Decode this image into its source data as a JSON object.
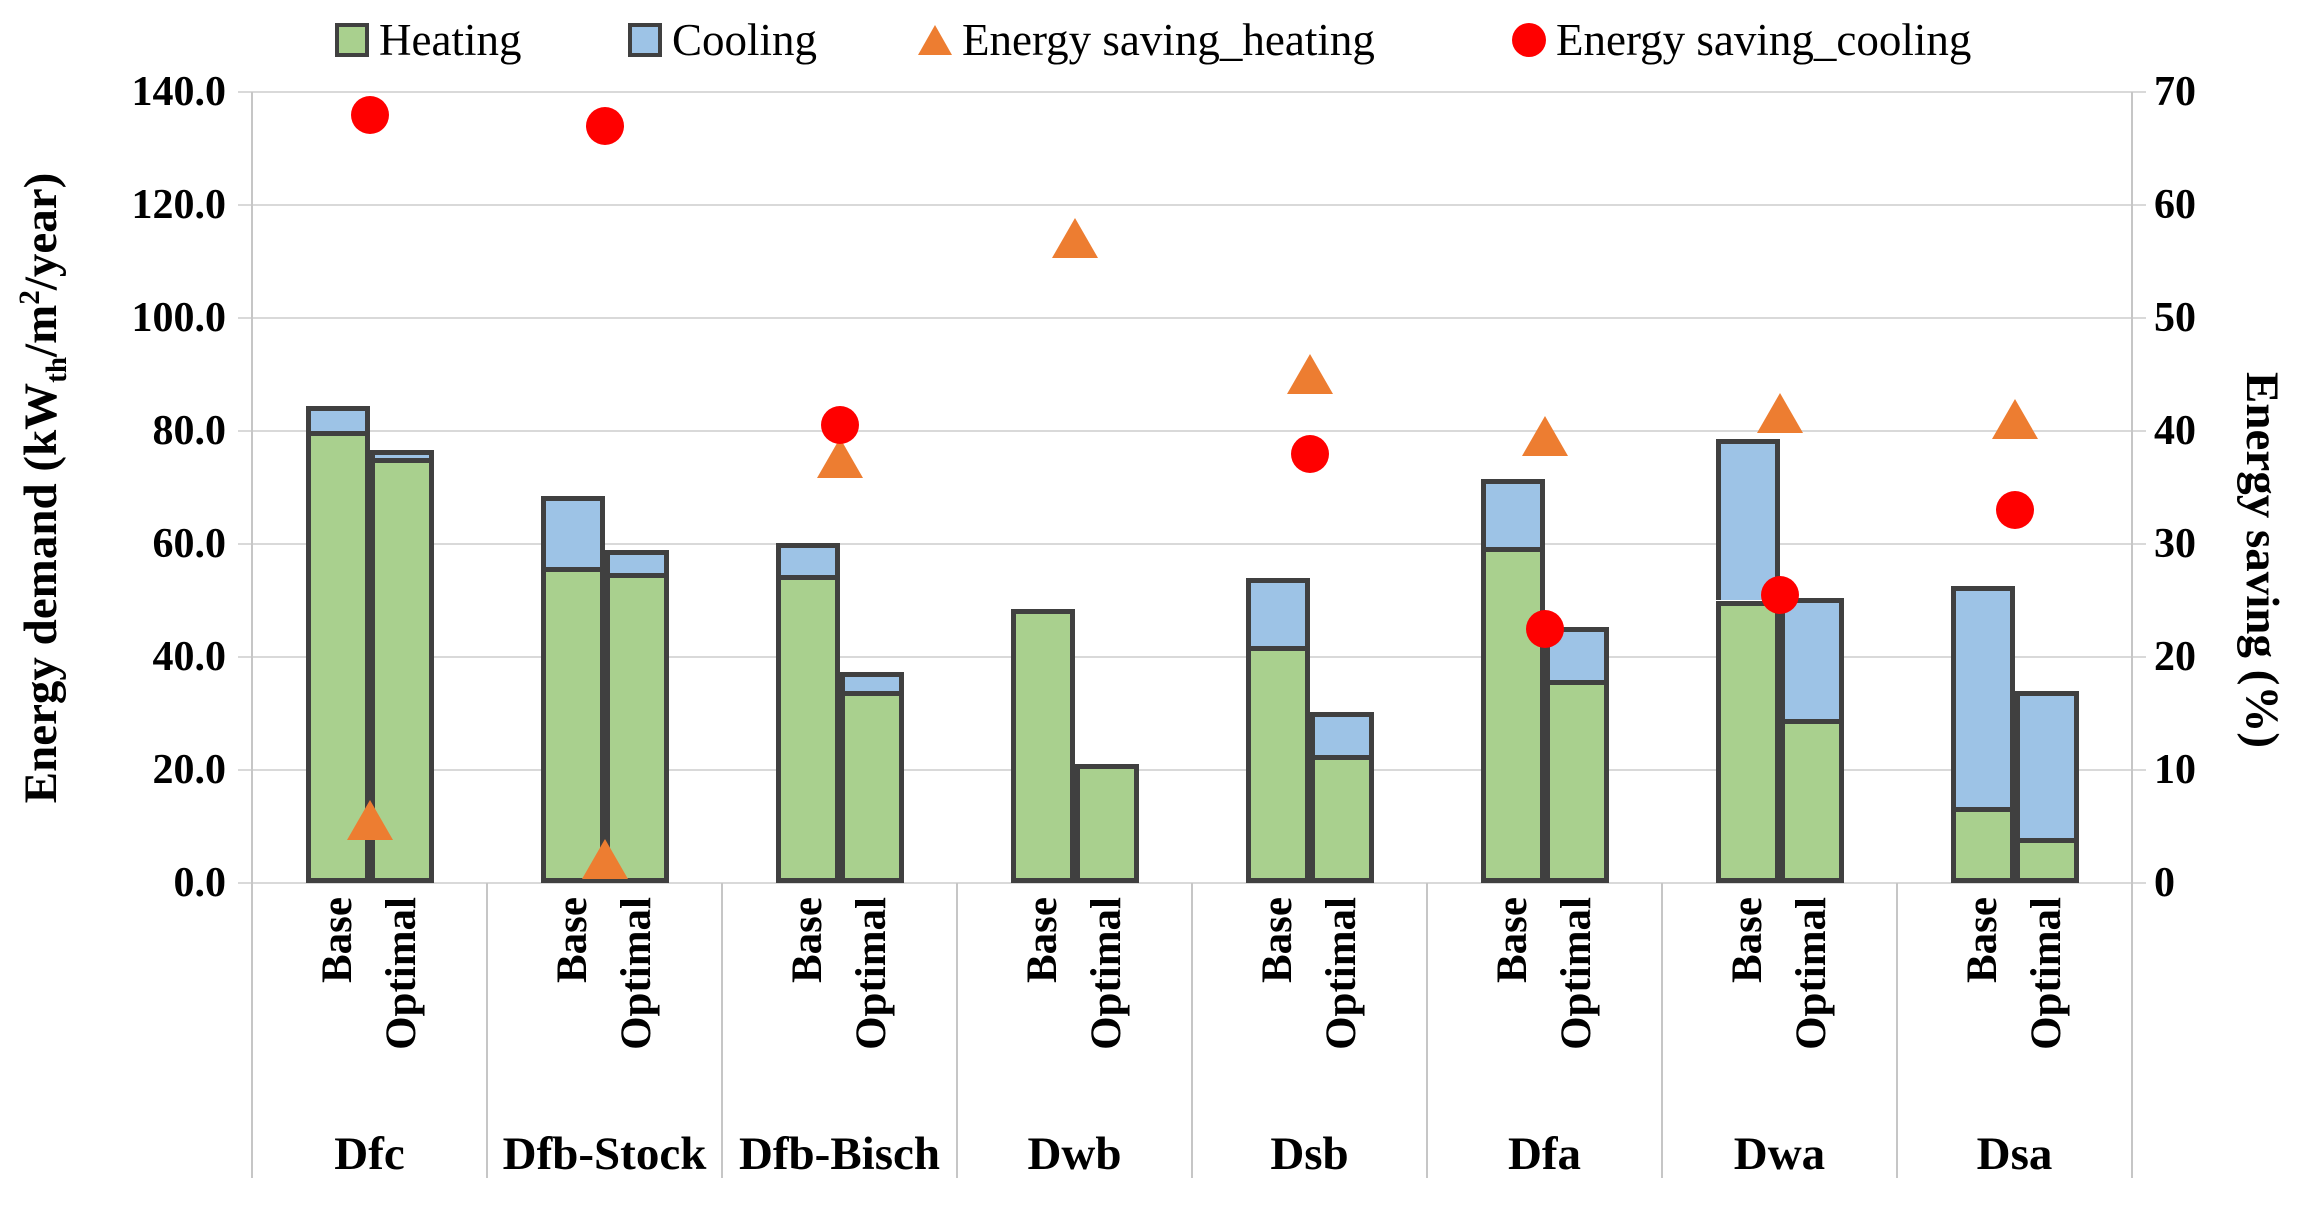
{
  "chart_data": {
    "type": "combo-stacked-bar-scatter",
    "categories": [
      "Dfc",
      "Dfb-Stock",
      "Dfb-Bisch",
      "Dwb",
      "Dsb",
      "Dfa",
      "Dwa",
      "Dsa"
    ],
    "bar_variants": [
      "Base",
      "Optimal"
    ],
    "left_axis": {
      "title_segments": [
        {
          "text": "Energy demand (kW"
        },
        {
          "text": "th",
          "style": "sub"
        },
        {
          "text": "/m"
        },
        {
          "text": "2",
          "style": "sup"
        },
        {
          "text": "/year)"
        }
      ],
      "ticks": [
        "140.0",
        "120.0",
        "100.0",
        "80.0",
        "60.0",
        "40.0",
        "20.0",
        "0.0"
      ],
      "min": 0,
      "max": 140,
      "step": 20,
      "grid": true
    },
    "right_axis": {
      "title": "Energy saving (%)",
      "ticks": [
        "70",
        "60",
        "50",
        "40",
        "30",
        "20",
        "10",
        "0"
      ],
      "min": 0,
      "max": 70,
      "step": 10
    },
    "series": {
      "heating": {
        "name": "Heating",
        "color": "#a9d08e",
        "type": "stacked-bar",
        "base": [
          80.0,
          56.0,
          54.5,
          48.5,
          42.0,
          59.5,
          50.0,
          13.5
        ],
        "optimal": [
          75.2,
          54.8,
          34.0,
          21.0,
          22.7,
          36.0,
          29.0,
          8.0
        ]
      },
      "cooling": {
        "name": "Cooling",
        "color": "#9dc3e6",
        "type": "stacked-bar",
        "base": [
          4.5,
          12.5,
          5.7,
          0,
          12.0,
          12.0,
          28.5,
          39.0
        ],
        "optimal": [
          1.5,
          4.2,
          3.4,
          0,
          7.5,
          9.3,
          21.5,
          26.0
        ]
      },
      "saving_heating": {
        "name": "Energy saving_heating",
        "color": "#ed7d31",
        "type": "scatter",
        "marker": "triangle",
        "values": [
          5.5,
          2.0,
          37.5,
          57.0,
          45.0,
          39.5,
          41.5,
          41.0
        ]
      },
      "saving_cooling": {
        "name": "Energy saving_cooling",
        "color": "#ff0000",
        "type": "scatter",
        "marker": "circle",
        "values": [
          68.0,
          67.0,
          40.5,
          null,
          38.0,
          22.5,
          25.5,
          33.0
        ]
      }
    },
    "legend_position": "top"
  }
}
